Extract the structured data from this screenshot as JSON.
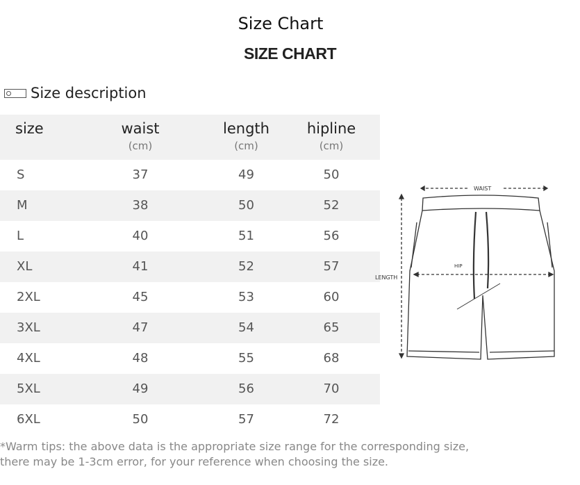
{
  "title": "Size Chart",
  "subtitle": "SIZE CHART",
  "section": {
    "icon": "ruler-icon",
    "label": "Size description"
  },
  "table": {
    "headers": [
      {
        "label": "size",
        "unit": ""
      },
      {
        "label": "waist",
        "unit": "(cm)"
      },
      {
        "label": "length",
        "unit": "(cm)"
      },
      {
        "label": "hipline",
        "unit": "(cm)"
      }
    ],
    "rows": [
      [
        "S",
        "37",
        "49",
        "50"
      ],
      [
        "M",
        "38",
        "50",
        "52"
      ],
      [
        "L",
        "40",
        "51",
        "56"
      ],
      [
        "XL",
        "41",
        "52",
        "57"
      ],
      [
        "2XL",
        "45",
        "53",
        "60"
      ],
      [
        "3XL",
        "47",
        "54",
        "65"
      ],
      [
        "4XL",
        "48",
        "55",
        "68"
      ],
      [
        "5XL",
        "49",
        "56",
        "70"
      ],
      [
        "6XL",
        "50",
        "57",
        "72"
      ]
    ]
  },
  "diagram": {
    "waist": "WAIST",
    "hip": "HIP",
    "length": "LENGTH"
  },
  "tips": [
    "*Warm tips: the above data is the appropriate size range for the corresponding size,",
    "there may be 1-3cm error, for your reference when choosing the size."
  ]
}
